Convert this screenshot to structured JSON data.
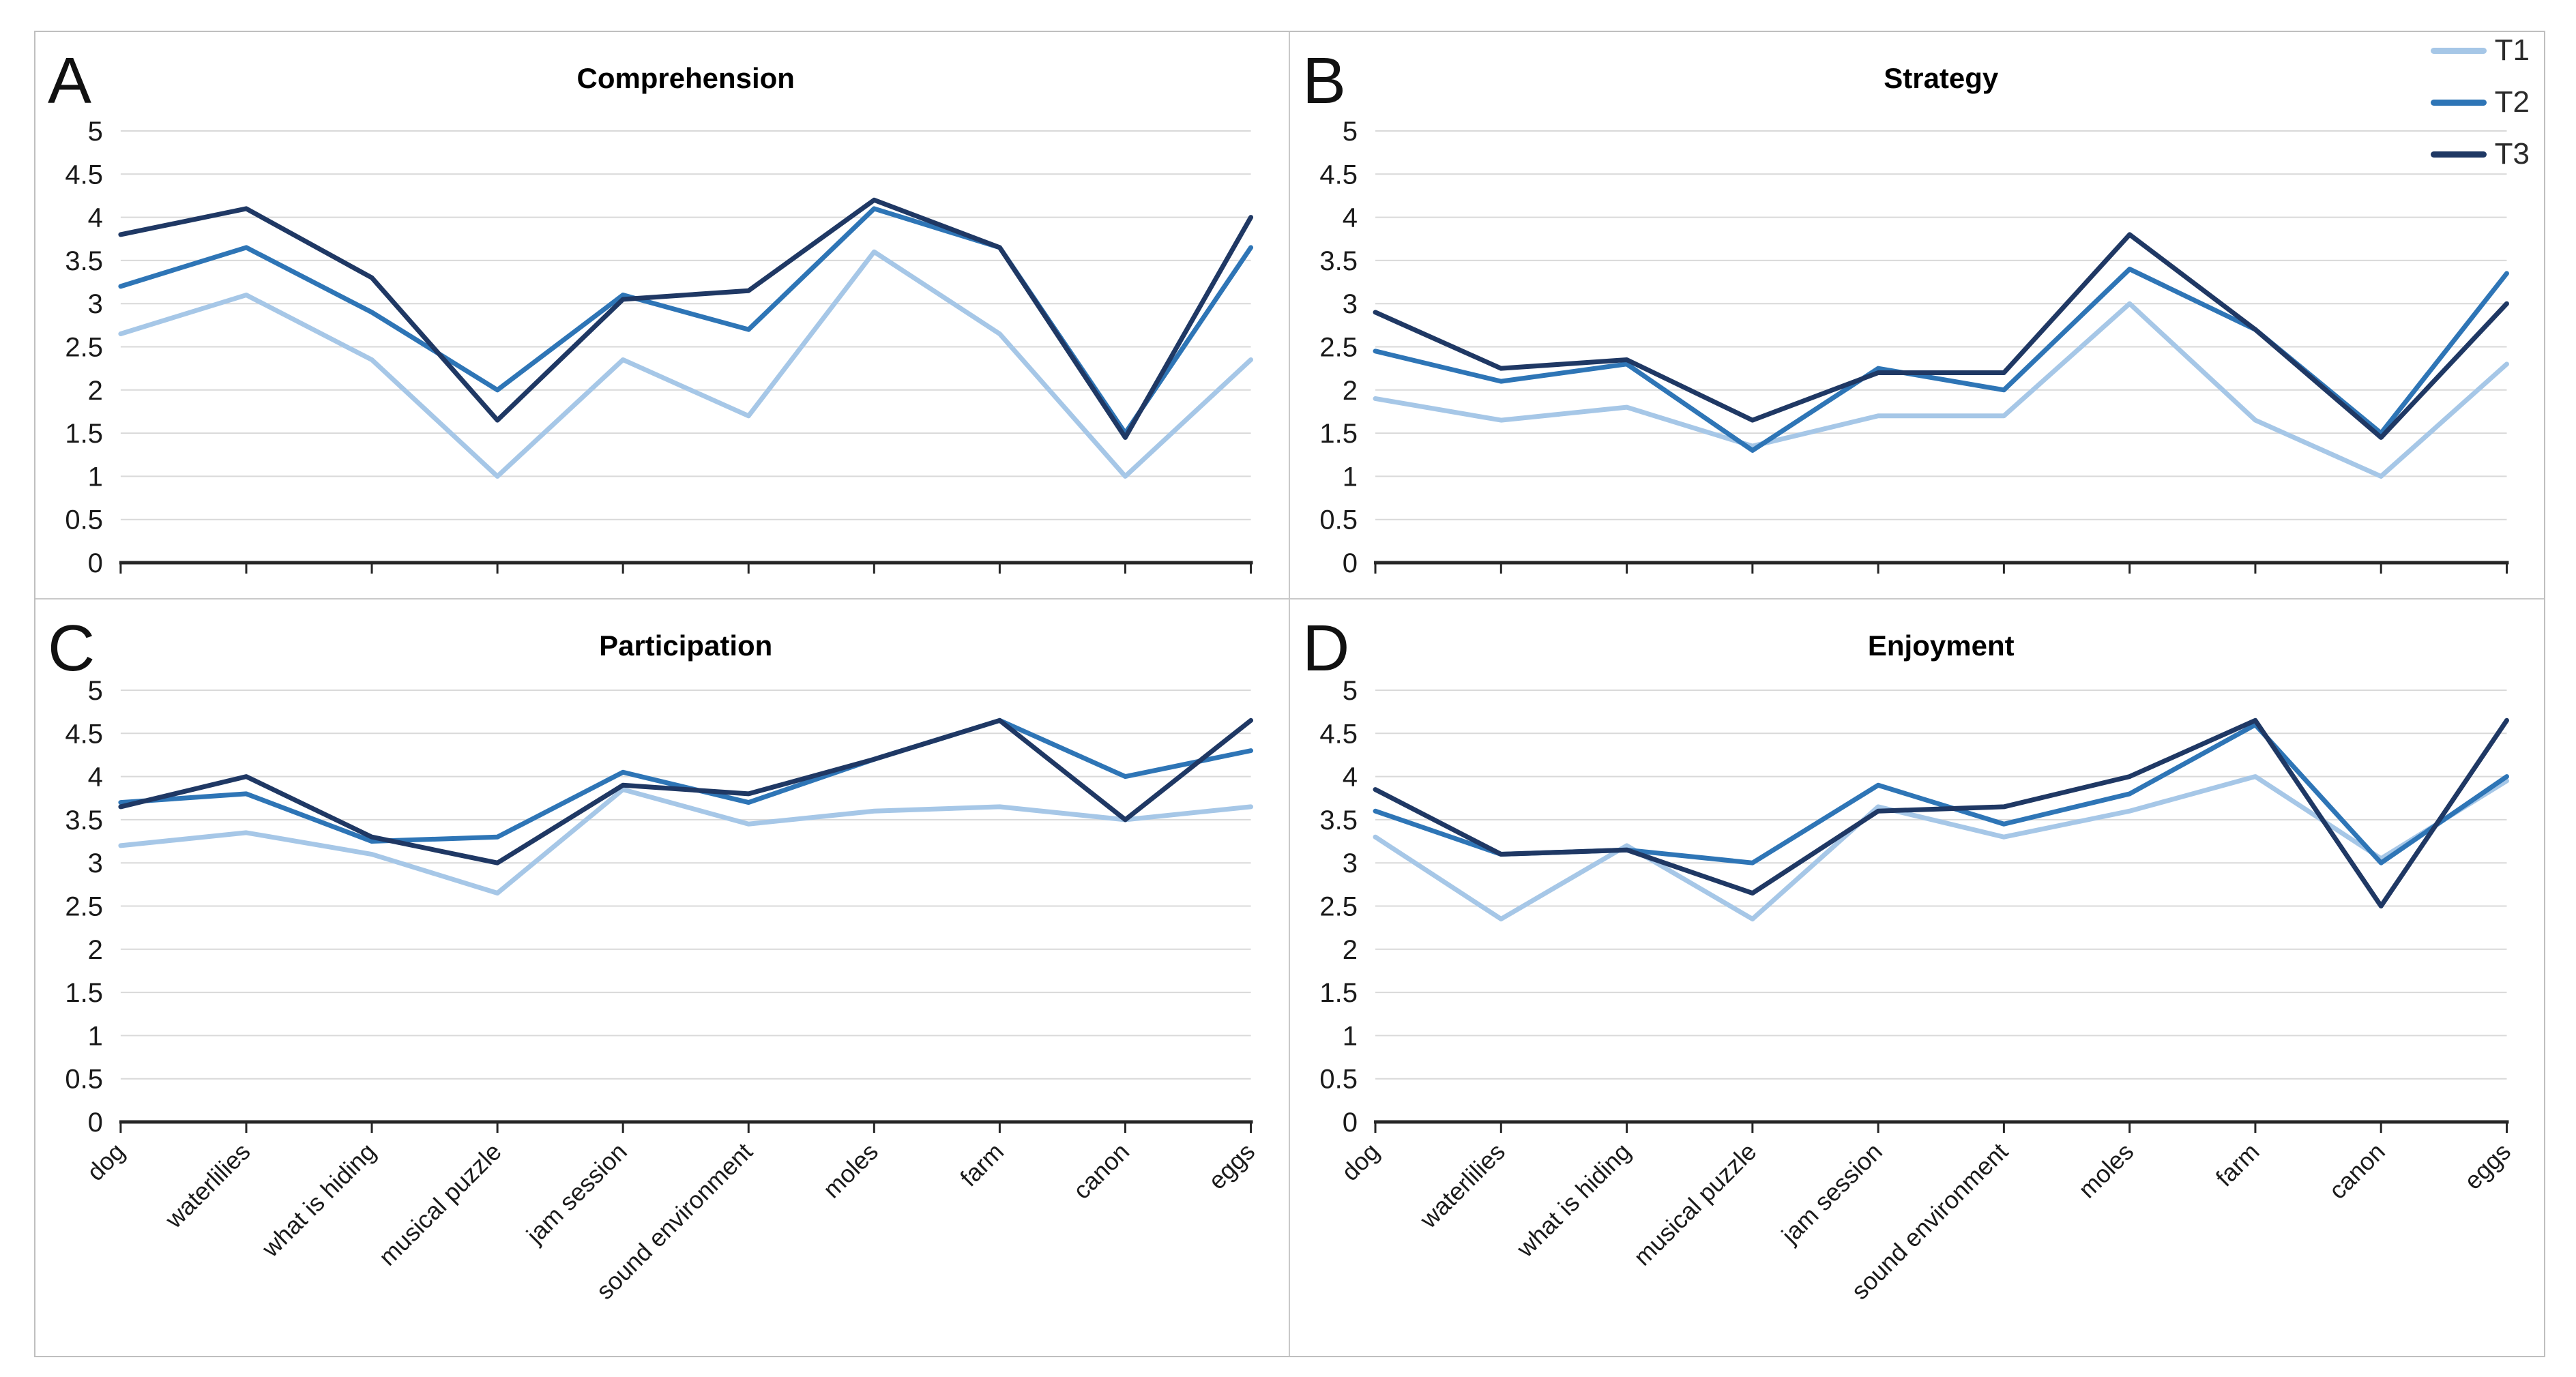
{
  "figure": {
    "kind": "four-panel line chart",
    "background": "#ffffff",
    "border_color": "#bfbfbf"
  },
  "legend": {
    "position": "top-right",
    "items": [
      {
        "label": "T1",
        "color": "#A6C7E7"
      },
      {
        "label": "T2",
        "color": "#2E75B6"
      },
      {
        "label": "T3",
        "color": "#1F3864"
      }
    ]
  },
  "axes": {
    "y": {
      "min": 0,
      "max": 5,
      "step": 0.5,
      "tick_labels": [
        "0",
        "0.5",
        "1",
        "1.5",
        "2",
        "2.5",
        "3",
        "3.5",
        "4",
        "4.5",
        "5"
      ]
    },
    "x": {
      "categories": [
        "dog",
        "waterlilies",
        "what is hiding",
        "musical puzzle",
        "jam session",
        "sound environment",
        "moles",
        "farm",
        "canon",
        "eggs"
      ]
    }
  },
  "chart_config": {
    "grid": true,
    "gridline_color": "#d9d9d9",
    "axis_color": "#262626",
    "text_color": "#1a1a1a",
    "series_colors": {
      "T1": "#A6C7E7",
      "T2": "#2E75B6",
      "T3": "#1F3864"
    },
    "legend_position": "top-right",
    "ylim": [
      0,
      5
    ]
  },
  "chart_data": [
    {
      "type": "line",
      "panel_label": "A",
      "title": "Comprehension",
      "show_x_labels": false,
      "categories": [
        "dog",
        "waterlilies",
        "what is hiding",
        "musical puzzle",
        "jam session",
        "sound environment",
        "moles",
        "farm",
        "canon",
        "eggs"
      ],
      "ylim": [
        0,
        5
      ],
      "series": [
        {
          "name": "T1",
          "values": [
            2.65,
            3.1,
            2.35,
            1.0,
            2.35,
            1.7,
            3.6,
            2.65,
            1.0,
            2.35
          ]
        },
        {
          "name": "T2",
          "values": [
            3.2,
            3.65,
            2.9,
            2.0,
            3.1,
            2.7,
            4.1,
            3.65,
            1.5,
            3.65
          ]
        },
        {
          "name": "T3",
          "values": [
            3.8,
            4.1,
            3.3,
            1.65,
            3.05,
            3.15,
            4.2,
            3.65,
            1.45,
            4.0
          ]
        }
      ]
    },
    {
      "type": "line",
      "panel_label": "B",
      "title": "Strategy",
      "show_x_labels": false,
      "categories": [
        "dog",
        "waterlilies",
        "what is hiding",
        "musical puzzle",
        "jam session",
        "sound environment",
        "moles",
        "farm",
        "canon",
        "eggs"
      ],
      "ylim": [
        0,
        5
      ],
      "series": [
        {
          "name": "T1",
          "values": [
            1.9,
            1.65,
            1.8,
            1.35,
            1.7,
            1.7,
            3.0,
            1.65,
            1.0,
            2.3
          ]
        },
        {
          "name": "T2",
          "values": [
            2.45,
            2.1,
            2.3,
            1.3,
            2.25,
            2.0,
            3.4,
            2.7,
            1.5,
            3.35
          ]
        },
        {
          "name": "T3",
          "values": [
            2.9,
            2.25,
            2.35,
            1.65,
            2.2,
            2.2,
            3.8,
            2.7,
            1.45,
            3.0
          ]
        }
      ]
    },
    {
      "type": "line",
      "panel_label": "C",
      "title": "Participation",
      "show_x_labels": true,
      "categories": [
        "dog",
        "waterlilies",
        "what is hiding",
        "musical puzzle",
        "jam session",
        "sound environment",
        "moles",
        "farm",
        "canon",
        "eggs"
      ],
      "ylim": [
        0,
        5
      ],
      "series": [
        {
          "name": "T1",
          "values": [
            3.2,
            3.35,
            3.1,
            2.65,
            3.85,
            3.45,
            3.6,
            3.65,
            3.5,
            3.65
          ]
        },
        {
          "name": "T2",
          "values": [
            3.7,
            3.8,
            3.25,
            3.3,
            4.05,
            3.7,
            4.2,
            4.65,
            4.0,
            4.3
          ]
        },
        {
          "name": "T3",
          "values": [
            3.65,
            4.0,
            3.3,
            3.0,
            3.9,
            3.8,
            4.2,
            4.65,
            3.5,
            4.65
          ]
        }
      ]
    },
    {
      "type": "line",
      "panel_label": "D",
      "title": "Enjoyment",
      "show_x_labels": true,
      "categories": [
        "dog",
        "waterlilies",
        "what is hiding",
        "musical puzzle",
        "jam session",
        "sound environment",
        "moles",
        "farm",
        "canon",
        "eggs"
      ],
      "ylim": [
        0,
        5
      ],
      "series": [
        {
          "name": "T1",
          "values": [
            3.3,
            2.35,
            3.2,
            2.35,
            3.65,
            3.3,
            3.6,
            4.0,
            3.05,
            3.95
          ]
        },
        {
          "name": "T2",
          "values": [
            3.6,
            3.1,
            3.15,
            3.0,
            3.9,
            3.45,
            3.8,
            4.6,
            3.0,
            4.0
          ]
        },
        {
          "name": "T3",
          "values": [
            3.85,
            3.1,
            3.15,
            2.65,
            3.6,
            3.65,
            4.0,
            4.65,
            2.5,
            4.65
          ]
        }
      ]
    }
  ]
}
